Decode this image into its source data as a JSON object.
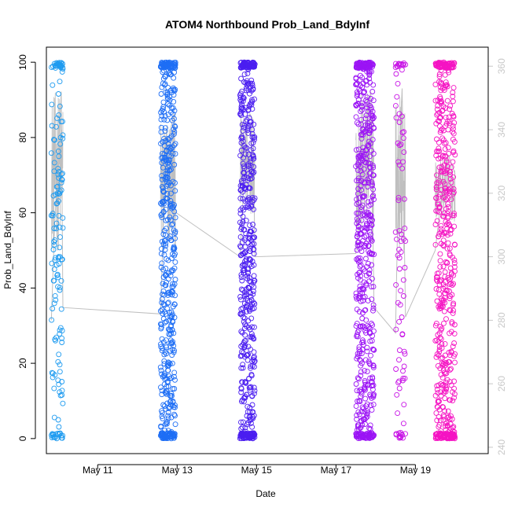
{
  "chart_data": {
    "type": "scatter",
    "title": "ATOM4 Northbound Prob_Land_BdyInf",
    "xlabel": "Date",
    "ylabel": "Prob_Land_BdyInf",
    "x_ticks": [
      "May 11",
      "May 13",
      "May 15",
      "May 17",
      "May 19"
    ],
    "y_ticks": [
      "0",
      "20",
      "40",
      "60",
      "80",
      "100"
    ],
    "y2_ticks": [
      "240",
      "260",
      "280",
      "300",
      "320",
      "340",
      "360"
    ],
    "xlim": [
      "2021-05-09 17:00",
      "2021-05-20 20:00"
    ],
    "ylim": [
      -4,
      104
    ],
    "y2lim": [
      238,
      366
    ],
    "grid": false,
    "series": [
      {
        "day": "2021-05-09",
        "color": "#1E9BF0",
        "x_range": [
          "2021-05-09 20:00",
          "2021-05-10 03:00"
        ],
        "y_range": [
          0,
          100
        ],
        "count": 160
      },
      {
        "day": "2021-05-12",
        "color": "#1E6EF5",
        "x_range": [
          "2021-05-12 14:00",
          "2021-05-12 23:00"
        ],
        "y_range": [
          0,
          100
        ],
        "count": 520
      },
      {
        "day": "2021-05-14",
        "color": "#4B1EF0",
        "x_range": [
          "2021-05-14 14:00",
          "2021-05-14 23:00"
        ],
        "y_range": [
          0,
          100
        ],
        "count": 560
      },
      {
        "day": "2021-05-17",
        "color": "#9B14F5",
        "x_range": [
          "2021-05-17 12:00",
          "2021-05-17 23:00"
        ],
        "y_range": [
          0,
          100
        ],
        "count": 600
      },
      {
        "day": "2021-05-18",
        "color": "#C814E6",
        "x_range": [
          "2021-05-18 12:00",
          "2021-05-18 18:00"
        ],
        "y_range": [
          0,
          100
        ],
        "count": 90
      },
      {
        "day": "2021-05-19",
        "color": "#F514C3",
        "x_range": [
          "2021-05-19 12:00",
          "2021-05-20 00:00"
        ],
        "y_range": [
          0,
          100
        ],
        "count": 560
      }
    ],
    "grey_line": {
      "color": "#bfbfbf",
      "axis": "right",
      "points": [
        [
          "2021-05-09 20:00",
          280
        ],
        [
          "2021-05-09 22:00",
          310
        ],
        [
          "2021-05-10 00:00",
          330
        ],
        [
          "2021-05-10 02:00",
          352
        ],
        [
          "2021-05-10 03:00",
          284
        ],
        [
          "2021-05-12 14:00",
          282
        ],
        [
          "2021-05-12 16:00",
          315
        ],
        [
          "2021-05-12 18:00",
          330
        ],
        [
          "2021-05-12 20:00",
          340
        ],
        [
          "2021-05-12 22:00",
          345
        ],
        [
          "2021-05-12 23:00",
          314
        ],
        [
          "2021-05-14 14:00",
          300
        ],
        [
          "2021-05-14 16:00",
          320
        ],
        [
          "2021-05-14 18:00",
          340
        ],
        [
          "2021-05-14 20:00",
          345
        ],
        [
          "2021-05-14 22:00",
          343
        ],
        [
          "2021-05-14 23:00",
          300
        ],
        [
          "2021-05-17 12:00",
          301
        ],
        [
          "2021-05-17 15:00",
          318
        ],
        [
          "2021-05-17 18:00",
          340
        ],
        [
          "2021-05-17 21:00",
          352
        ],
        [
          "2021-05-17 23:00",
          284
        ],
        [
          "2021-05-18 12:00",
          276
        ],
        [
          "2021-05-18 14:00",
          330
        ],
        [
          "2021-05-18 16:00",
          353
        ],
        [
          "2021-05-18 18:00",
          281
        ],
        [
          "2021-05-19 12:00",
          302
        ],
        [
          "2021-05-19 16:00",
          320
        ],
        [
          "2021-05-19 20:00",
          332
        ],
        [
          "2021-05-20 00:00",
          326
        ]
      ]
    }
  }
}
